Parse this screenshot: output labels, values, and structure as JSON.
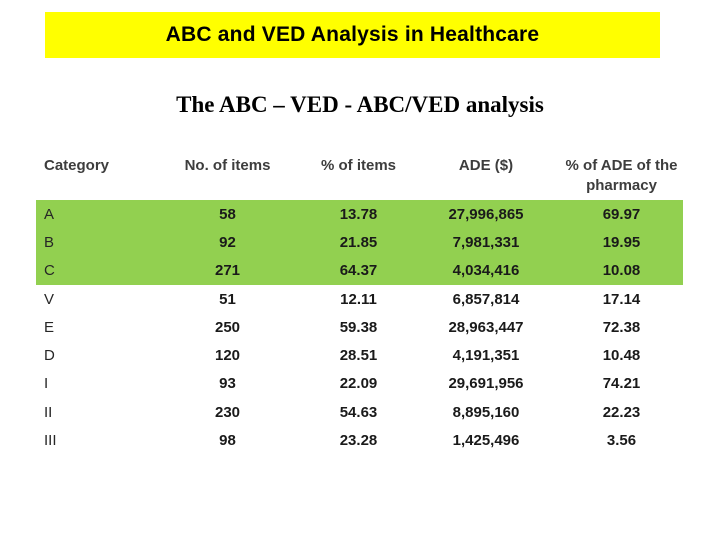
{
  "title_banner": {
    "text": "ABC and VED Analysis in Healthcare",
    "bg_color": "#FFFF00"
  },
  "subtitle": "The ABC – VED - ABC/VED analysis",
  "table": {
    "highlight_color": "#92D050",
    "columns": {
      "category": "Category",
      "no_of_items": "No. of items",
      "pct_of_items": "% of items",
      "ade": "ADE ($)",
      "pct_of_ade": "% of ADE of the pharmacy"
    },
    "rows": [
      {
        "category": "A",
        "no_of_items": "58",
        "pct_of_items": "13.78",
        "ade": "27,996,865",
        "pct_of_ade": "69.97",
        "highlighted": true
      },
      {
        "category": "B",
        "no_of_items": "92",
        "pct_of_items": "21.85",
        "ade": "7,981,331",
        "pct_of_ade": "19.95",
        "highlighted": true
      },
      {
        "category": "C",
        "no_of_items": "271",
        "pct_of_items": "64.37",
        "ade": "4,034,416",
        "pct_of_ade": "10.08",
        "highlighted": true
      },
      {
        "category": "V",
        "no_of_items": "51",
        "pct_of_items": "12.11",
        "ade": "6,857,814",
        "pct_of_ade": "17.14",
        "highlighted": false
      },
      {
        "category": "E",
        "no_of_items": "250",
        "pct_of_items": "59.38",
        "ade": "28,963,447",
        "pct_of_ade": "72.38",
        "highlighted": false
      },
      {
        "category": "D",
        "no_of_items": "120",
        "pct_of_items": "28.51",
        "ade": "4,191,351",
        "pct_of_ade": "10.48",
        "highlighted": false
      },
      {
        "category": "I",
        "no_of_items": "93",
        "pct_of_items": "22.09",
        "ade": "29,691,956",
        "pct_of_ade": "74.21",
        "highlighted": false
      },
      {
        "category": "II",
        "no_of_items": "230",
        "pct_of_items": "54.63",
        "ade": "8,895,160",
        "pct_of_ade": "22.23",
        "highlighted": false
      },
      {
        "category": "III",
        "no_of_items": "98",
        "pct_of_items": "23.28",
        "ade": "1,425,496",
        "pct_of_ade": "3.56",
        "highlighted": false
      }
    ]
  }
}
